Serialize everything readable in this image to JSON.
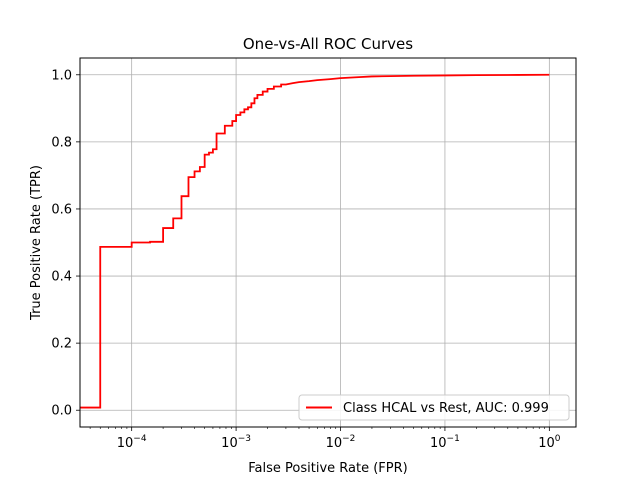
{
  "chart_data": {
    "type": "line",
    "title": "One-vs-All ROC Curves",
    "xlabel": "False Positive Rate (FPR)",
    "ylabel": "True Positive Rate (TPR)",
    "x_scale": "log",
    "xlim": [
      3.2e-05,
      1.8
    ],
    "ylim": [
      -0.05,
      1.05
    ],
    "grid": true,
    "legend_position": "lower-right",
    "x_ticks": [
      {
        "value": 0.0001,
        "base": "10",
        "exp": "−4"
      },
      {
        "value": 0.001,
        "base": "10",
        "exp": "−3"
      },
      {
        "value": 0.01,
        "base": "10",
        "exp": "−2"
      },
      {
        "value": 0.1,
        "base": "10",
        "exp": "−1"
      },
      {
        "value": 1,
        "base": "10",
        "exp": "0"
      }
    ],
    "y_ticks": [
      {
        "value": 0.0,
        "label": "0.0"
      },
      {
        "value": 0.2,
        "label": "0.2"
      },
      {
        "value": 0.4,
        "label": "0.4"
      },
      {
        "value": 0.6,
        "label": "0.6"
      },
      {
        "value": 0.8,
        "label": "0.8"
      },
      {
        "value": 1.0,
        "label": "1.0"
      }
    ],
    "series": [
      {
        "name": "Class HCAL vs Rest, AUC: 0.999",
        "color": "#ff0000",
        "step": true,
        "points": [
          [
            3.2e-05,
            0.008
          ],
          [
            5e-05,
            0.008
          ],
          [
            5e-05,
            0.487
          ],
          [
            0.0001,
            0.487
          ],
          [
            0.0001,
            0.5
          ],
          [
            0.00015,
            0.5
          ],
          [
            0.00015,
            0.502
          ],
          [
            0.0002,
            0.502
          ],
          [
            0.0002,
            0.543
          ],
          [
            0.00025,
            0.543
          ],
          [
            0.00025,
            0.572
          ],
          [
            0.0003,
            0.572
          ],
          [
            0.0003,
            0.638
          ],
          [
            0.00035,
            0.638
          ],
          [
            0.00035,
            0.695
          ],
          [
            0.0004,
            0.695
          ],
          [
            0.0004,
            0.712
          ],
          [
            0.00045,
            0.712
          ],
          [
            0.00045,
            0.725
          ],
          [
            0.0005,
            0.725
          ],
          [
            0.0005,
            0.762
          ],
          [
            0.00055,
            0.762
          ],
          [
            0.00055,
            0.768
          ],
          [
            0.0006,
            0.768
          ],
          [
            0.0006,
            0.778
          ],
          [
            0.00065,
            0.778
          ],
          [
            0.00065,
            0.825
          ],
          [
            0.00078,
            0.825
          ],
          [
            0.00078,
            0.848
          ],
          [
            0.00092,
            0.848
          ],
          [
            0.00092,
            0.862
          ],
          [
            0.001,
            0.862
          ],
          [
            0.001,
            0.88
          ],
          [
            0.0011,
            0.88
          ],
          [
            0.0011,
            0.888
          ],
          [
            0.0012,
            0.888
          ],
          [
            0.0012,
            0.897
          ],
          [
            0.0013,
            0.897
          ],
          [
            0.0013,
            0.903
          ],
          [
            0.0014,
            0.903
          ],
          [
            0.0014,
            0.915
          ],
          [
            0.0015,
            0.915
          ],
          [
            0.0015,
            0.93
          ],
          [
            0.0016,
            0.93
          ],
          [
            0.0016,
            0.94
          ],
          [
            0.0018,
            0.94
          ],
          [
            0.0018,
            0.95
          ],
          [
            0.002,
            0.95
          ],
          [
            0.002,
            0.958
          ],
          [
            0.0023,
            0.958
          ],
          [
            0.0023,
            0.965
          ],
          [
            0.0027,
            0.965
          ],
          [
            0.0027,
            0.971
          ],
          [
            0.003,
            0.971
          ],
          [
            0.0035,
            0.975
          ],
          [
            0.004,
            0.978
          ],
          [
            0.005,
            0.981
          ],
          [
            0.006,
            0.984
          ],
          [
            0.008,
            0.987
          ],
          [
            0.01,
            0.99
          ],
          [
            0.015,
            0.993
          ],
          [
            0.02,
            0.995
          ],
          [
            0.03,
            0.996
          ],
          [
            0.05,
            0.997
          ],
          [
            0.1,
            0.998
          ],
          [
            0.2,
            0.999
          ],
          [
            0.5,
            0.9995
          ],
          [
            1.0,
            1.0
          ]
        ]
      }
    ]
  }
}
